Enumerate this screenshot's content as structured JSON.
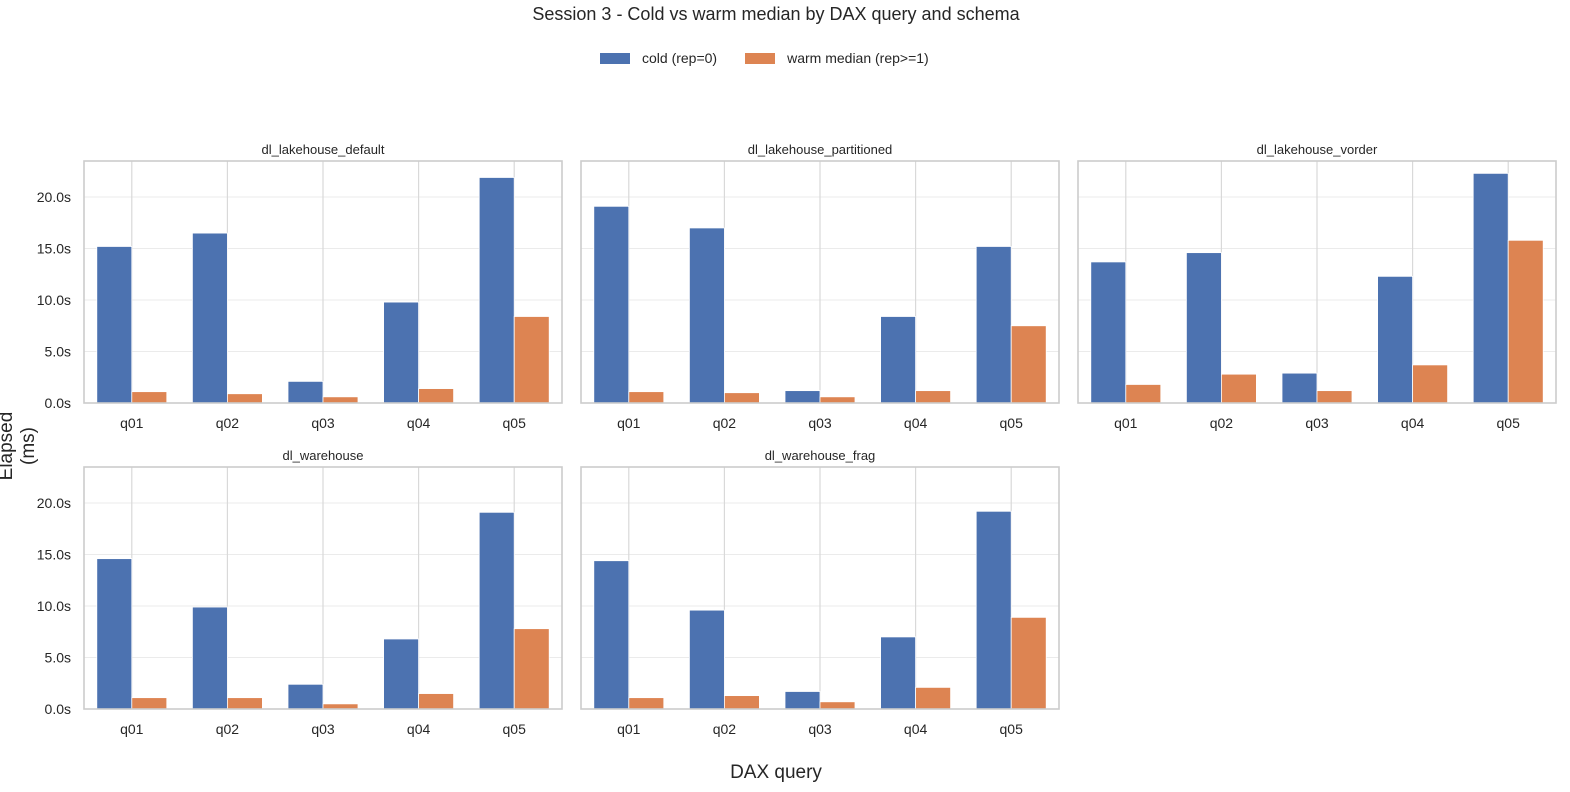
{
  "title": "Session 3 - Cold vs warm median by DAX query and schema",
  "xlabel": "DAX query",
  "ylabel": "Elapsed (ms)",
  "legend": [
    {
      "label": "cold (rep=0)",
      "color": "#4c72b0"
    },
    {
      "label": "warm median (rep>=1)",
      "color": "#dd8452"
    }
  ],
  "chart_data": {
    "type": "bar",
    "categories": [
      "q01",
      "q02",
      "q03",
      "q04",
      "q05"
    ],
    "ylim": [
      0,
      23500
    ],
    "yticks": [
      0,
      5000,
      10000,
      15000,
      20000
    ],
    "ytick_labels": [
      "0.0s",
      "5.0s",
      "10.0s",
      "15.0s",
      "20.0s"
    ],
    "grid": true,
    "legend_position": "top-center",
    "panels": [
      {
        "title": "dl_lakehouse_default",
        "series": [
          {
            "values": [
              15200,
              16500,
              2100,
              9800,
              21900
            ]
          },
          {
            "values": [
              1100,
              900,
              600,
              1400,
              8400
            ]
          }
        ]
      },
      {
        "title": "dl_lakehouse_partitioned",
        "series": [
          {
            "values": [
              19100,
              17000,
              1200,
              8400,
              15200
            ]
          },
          {
            "values": [
              1100,
              1000,
              600,
              1200,
              7500
            ]
          }
        ]
      },
      {
        "title": "dl_lakehouse_vorder",
        "series": [
          {
            "values": [
              13700,
              14600,
              2900,
              12300,
              22300
            ]
          },
          {
            "values": [
              1800,
              2800,
              1200,
              3700,
              15800
            ]
          }
        ]
      },
      {
        "title": "dl_warehouse",
        "series": [
          {
            "values": [
              14600,
              9900,
              2400,
              6800,
              19100
            ]
          },
          {
            "values": [
              1100,
              1100,
              500,
              1500,
              7800
            ]
          }
        ]
      },
      {
        "title": "dl_warehouse_frag",
        "series": [
          {
            "values": [
              14400,
              9600,
              1700,
              7000,
              19200
            ]
          },
          {
            "values": [
              1100,
              1300,
              700,
              2100,
              8900
            ]
          }
        ]
      }
    ]
  }
}
